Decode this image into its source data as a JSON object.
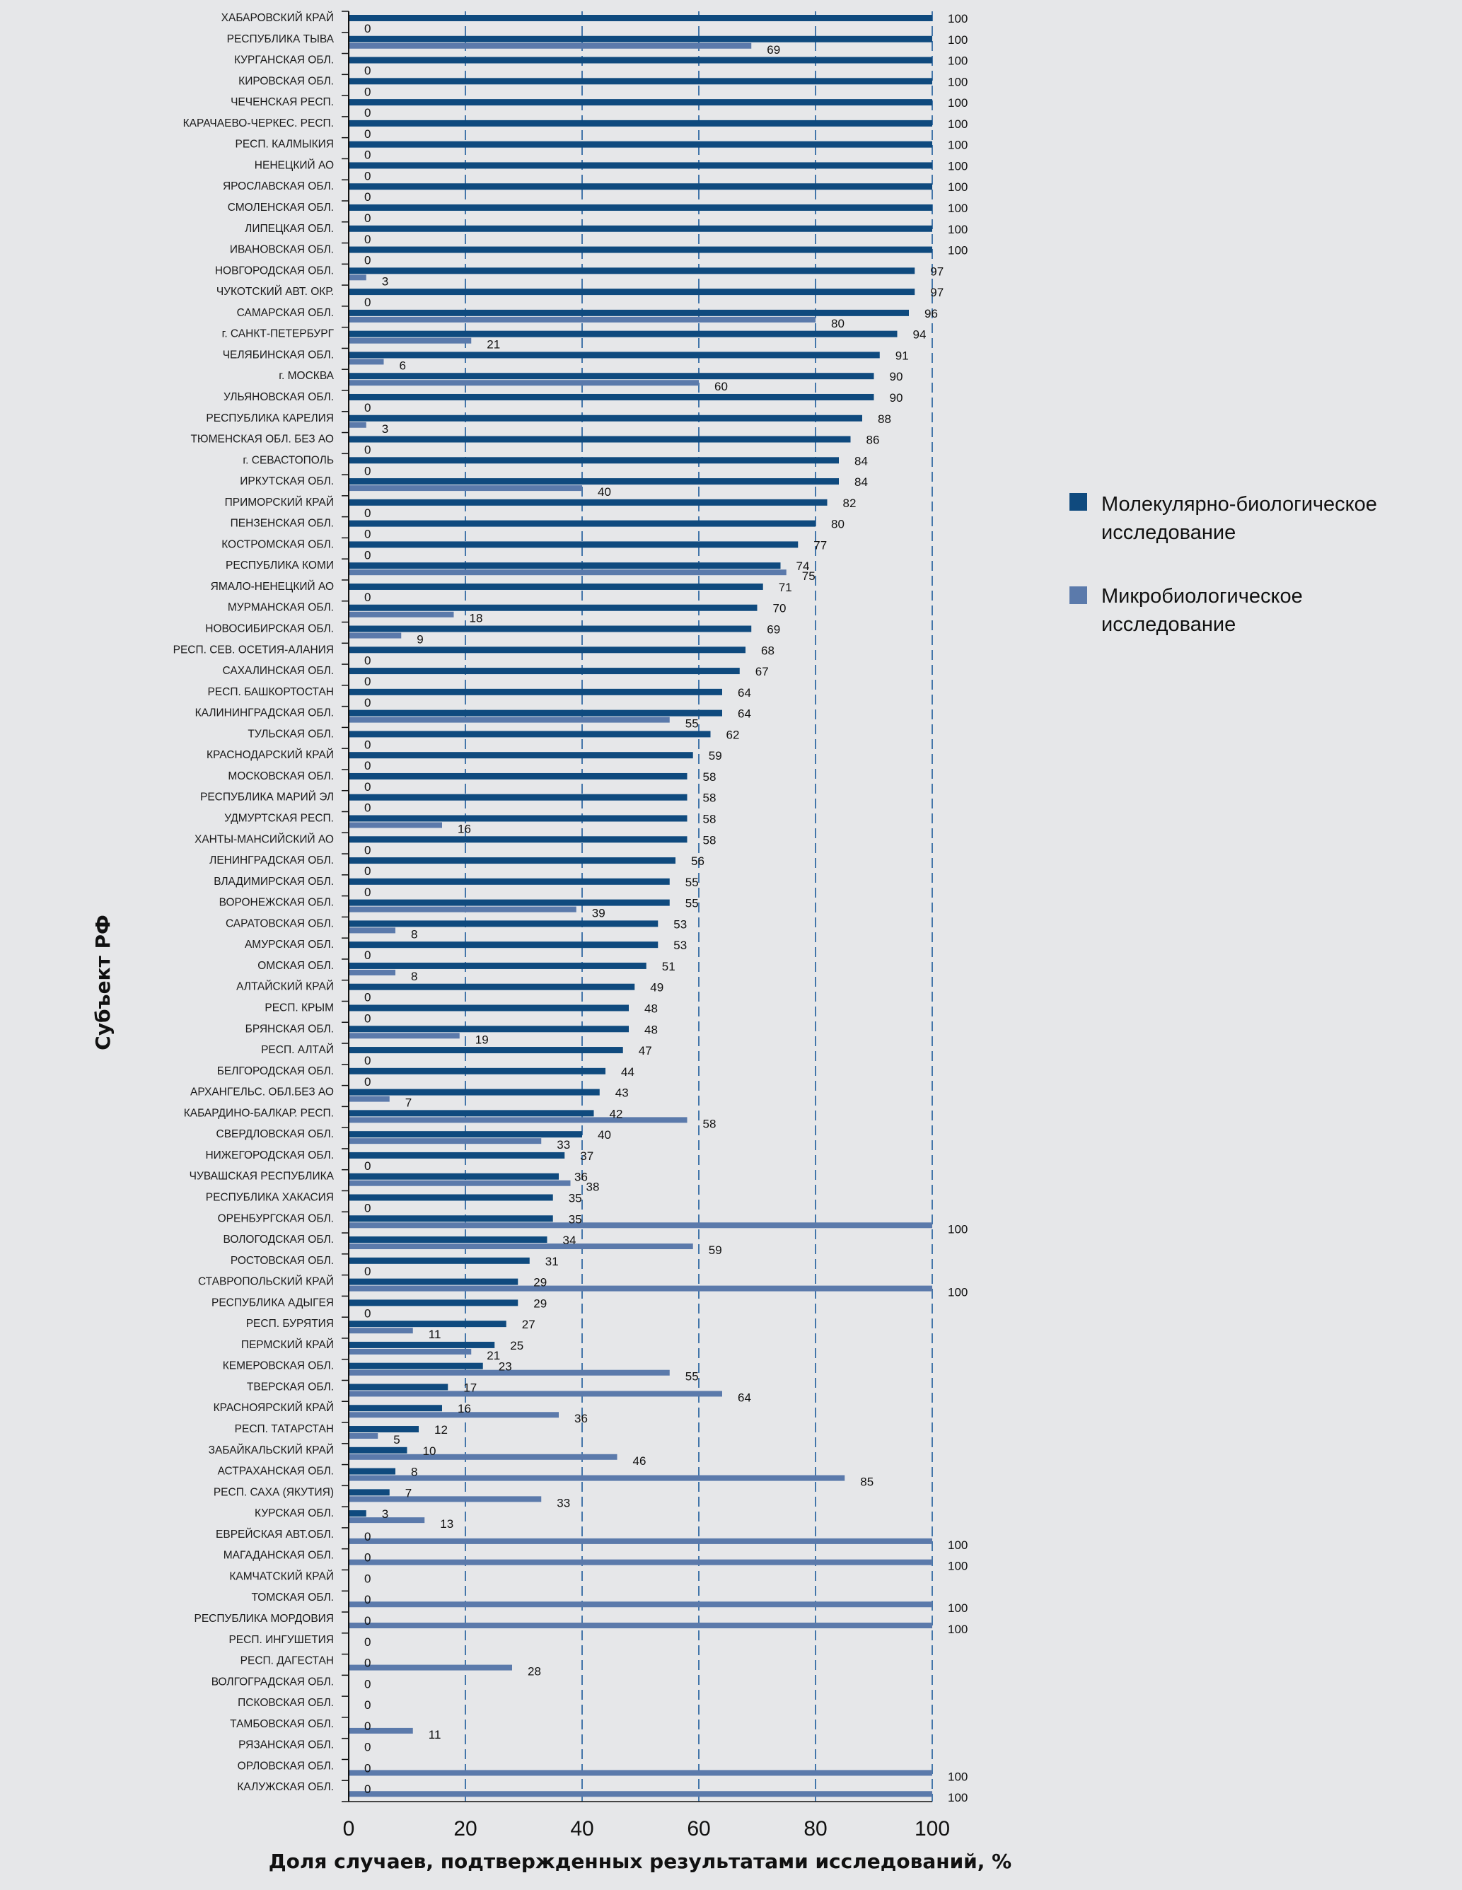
{
  "chart_data": {
    "type": "bar",
    "orientation": "horizontal",
    "xlabel": "Доля случаев, подтвержденных результатами исследований, %",
    "ylabel": "Субъект РФ",
    "xlim": [
      0,
      100
    ],
    "xticks": [
      "0",
      "20",
      "40",
      "60",
      "80",
      "100"
    ],
    "grid": "vertical dashed",
    "legend_position": "right",
    "categories": [
      "ХАБАРОВСКИЙ КРАЙ",
      "РЕСПУБЛИКА ТЫВА",
      "КУРГАНСКАЯ ОБЛ.",
      "КИРОВСКАЯ ОБЛ.",
      "ЧЕЧЕНСКАЯ РЕСП.",
      "КАРАЧАЕВО-ЧЕРКЕС. РЕСП.",
      "РЕСП. КАЛМЫКИЯ",
      "НЕНЕЦКИЙ АО",
      "ЯРОСЛАВСКАЯ ОБЛ.",
      "СМОЛЕНСКАЯ ОБЛ.",
      "ЛИПЕЦКАЯ ОБЛ.",
      "ИВАНОВСКАЯ ОБЛ.",
      "НОВГОРОДСКАЯ ОБЛ.",
      "ЧУКОТСКИЙ АВТ. ОКР.",
      "САМАРСКАЯ ОБЛ.",
      "г. САНКТ-ПЕТЕРБУРГ",
      "ЧЕЛЯБИНСКАЯ ОБЛ.",
      "г. МОСКВА",
      "УЛЬЯНОВСКАЯ ОБЛ.",
      "РЕСПУБЛИКА КАРЕЛИЯ",
      "ТЮМЕНСКАЯ ОБЛ. БЕЗ АО",
      "г. СЕВАСТОПОЛЬ",
      "ИРКУТСКАЯ ОБЛ.",
      "ПРИМОРСКИЙ КРАЙ",
      "ПЕНЗЕНСКАЯ ОБЛ.",
      "КОСТРОМСКАЯ ОБЛ.",
      "РЕСПУБЛИКА КОМИ",
      "ЯМАЛО-НЕНЕЦКИЙ АО",
      "МУРМАНСКАЯ ОБЛ.",
      "НОВОСИБИРСКАЯ ОБЛ.",
      "РЕСП. СЕВ. ОСЕТИЯ-АЛАНИЯ",
      "САХАЛИНСКАЯ ОБЛ.",
      "РЕСП. БАШКОРТОСТАН",
      "КАЛИНИНГРАДСКАЯ ОБЛ.",
      "ТУЛЬСКАЯ ОБЛ.",
      "КРАСНОДАРСКИЙ КРАЙ",
      "МОСКОВСКАЯ ОБЛ.",
      "РЕСПУБЛИКА МАРИЙ ЭЛ",
      "УДМУРТСКАЯ РЕСП.",
      "ХАНТЫ-МАНСИЙСКИЙ АО",
      "ЛЕНИНГРАДСКАЯ ОБЛ.",
      "ВЛАДИМИРСКАЯ ОБЛ.",
      "ВОРОНЕЖСКАЯ ОБЛ.",
      "САРАТОВСКАЯ ОБЛ.",
      "АМУРСКАЯ ОБЛ.",
      "ОМСКАЯ ОБЛ.",
      "АЛТАЙСКИЙ КРАЙ",
      "РЕСП. КРЫМ",
      "БРЯНСКАЯ ОБЛ.",
      "РЕСП. АЛТАЙ",
      "БЕЛГОРОДСКАЯ ОБЛ.",
      "АРХАНГЕЛЬС. ОБЛ.БЕЗ АО",
      "КАБАРДИНО-БАЛКАР. РЕСП.",
      "СВЕРДЛОВСКАЯ ОБЛ.",
      "НИЖЕГОРОДСКАЯ ОБЛ.",
      "ЧУВАШСКАЯ РЕСПУБЛИКА",
      "РЕСПУБЛИКА ХАКАСИЯ",
      "ОРЕНБУРГСКАЯ ОБЛ.",
      "ВОЛОГОДСКАЯ ОБЛ.",
      "РОСТОВСКАЯ ОБЛ.",
      "СТАВРОПОЛЬСКИЙ КРАЙ",
      "РЕСПУБЛИКА АДЫГЕЯ",
      "РЕСП. БУРЯТИЯ",
      "ПЕРМСКИЙ КРАЙ",
      "КЕМЕРОВСКАЯ ОБЛ.",
      "ТВЕРСКАЯ ОБЛ.",
      "КРАСНОЯРСКИЙ КРАЙ",
      "РЕСП. ТАТАРСТАН",
      "ЗАБАЙКАЛЬСКИЙ КРАЙ",
      "АСТРАХАНСКАЯ ОБЛ.",
      "РЕСП. САХА (ЯКУТИЯ)",
      "КУРСКАЯ ОБЛ.",
      "ЕВРЕЙСКАЯ АВТ.ОБЛ.",
      "МАГАДАНСКАЯ ОБЛ.",
      "КАМЧАТСКИЙ КРАЙ",
      "ТОМСКАЯ ОБЛ.",
      "РЕСПУБЛИКА МОРДОВИЯ",
      "РЕСП. ИНГУШЕТИЯ",
      "РЕСП. ДАГЕСТАН",
      "ВОЛГОГРАДСКАЯ ОБЛ.",
      "ПСКОВСКАЯ ОБЛ.",
      "ТАМБОВСКАЯ ОБЛ.",
      "РЯЗАНСКАЯ ОБЛ.",
      "ОРЛОВСКАЯ ОБЛ.",
      "КАЛУЖСКАЯ ОБЛ."
    ],
    "series": [
      {
        "name": "Молекулярно-биологическое исследование",
        "color": "#0f4a7e",
        "values": [
          100,
          100,
          100,
          100,
          100,
          100,
          100,
          100,
          100,
          100,
          100,
          100,
          97,
          97,
          96,
          94,
          91,
          90,
          90,
          88,
          86,
          84,
          84,
          82,
          80,
          77,
          74,
          71,
          70,
          69,
          68,
          67,
          64,
          64,
          62,
          59,
          58,
          58,
          58,
          58,
          56,
          55,
          55,
          53,
          53,
          51,
          49,
          48,
          48,
          47,
          44,
          43,
          42,
          40,
          37,
          36,
          35,
          35,
          34,
          31,
          29,
          29,
          27,
          25,
          23,
          17,
          16,
          12,
          10,
          8,
          7,
          3,
          0,
          0,
          0,
          0,
          0,
          0,
          0,
          0,
          0,
          0,
          0,
          0,
          0
        ]
      },
      {
        "name": "Микробиологическое исследование",
        "color": "#5b7aab",
        "values": [
          0,
          69,
          0,
          0,
          0,
          0,
          0,
          0,
          0,
          0,
          0,
          0,
          3,
          0,
          80,
          21,
          6,
          60,
          0,
          3,
          0,
          0,
          40,
          0,
          0,
          0,
          75,
          0,
          18,
          9,
          0,
          0,
          0,
          55,
          0,
          0,
          0,
          0,
          16,
          0,
          0,
          0,
          39,
          8,
          0,
          8,
          0,
          0,
          19,
          0,
          0,
          7,
          58,
          33,
          0,
          38,
          0,
          100,
          59,
          0,
          100,
          0,
          11,
          21,
          55,
          64,
          36,
          5,
          46,
          85,
          33,
          13,
          100,
          100,
          0,
          100,
          100,
          0,
          28,
          0,
          0,
          11,
          0,
          100,
          100
        ]
      }
    ]
  },
  "legend": {
    "mol_line1": "Молекулярно-биологическое",
    "mol_line2": "исследование",
    "micro_line1": "Микробиологическое",
    "micro_line2": "исследование"
  }
}
